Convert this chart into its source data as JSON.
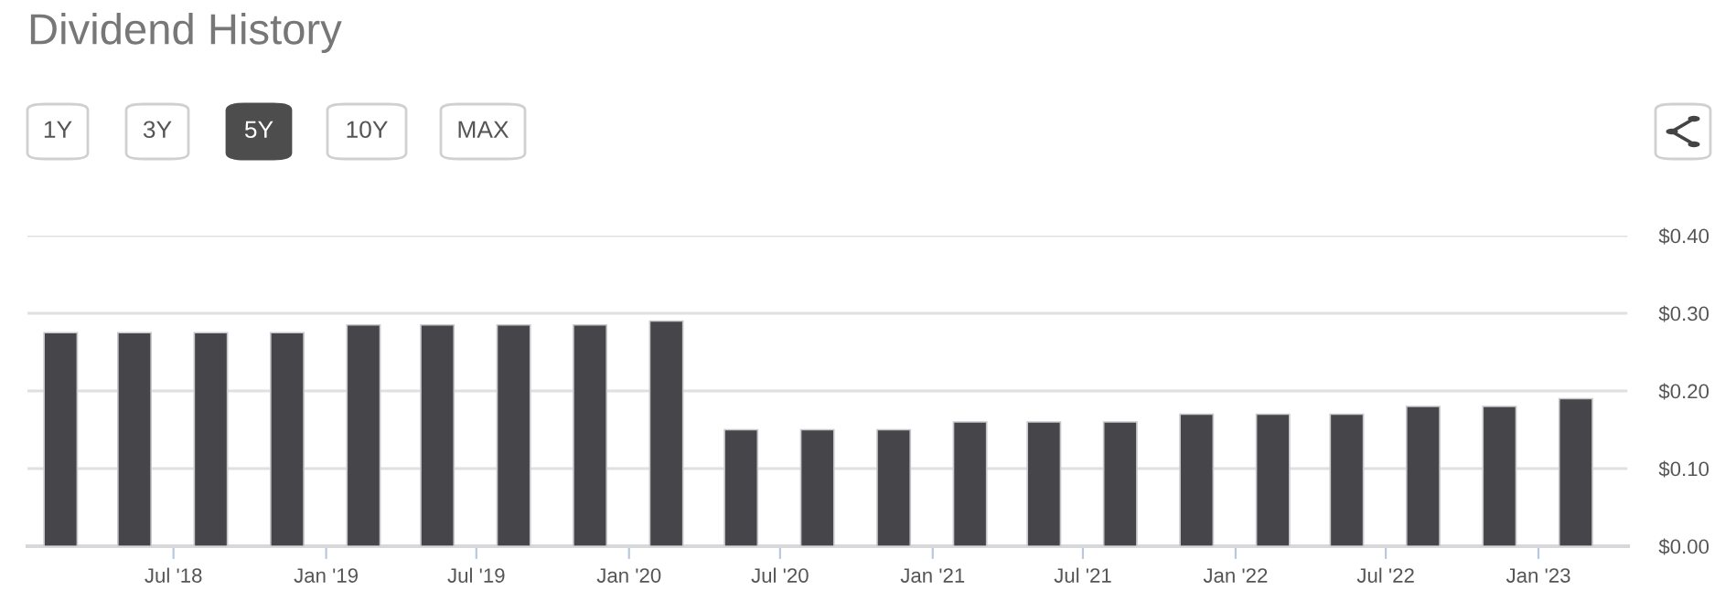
{
  "chart_data": {
    "type": "bar",
    "title": "Dividend History",
    "annotations": [
      "1Y",
      "3Y",
      "5Y",
      "10Y",
      "MAX"
    ],
    "x": [
      "2018-02-15",
      "2018-05-15",
      "2018-08-15",
      "2018-11-15",
      "2019-02-15",
      "2019-05-15",
      "2019-08-15",
      "2019-11-15",
      "2020-02-15",
      "2020-05-15",
      "2020-08-15",
      "2020-11-15",
      "2021-02-15",
      "2021-05-15",
      "2021-08-15",
      "2021-11-15",
      "2022-02-15",
      "2022-05-15",
      "2022-08-15",
      "2022-11-15",
      "2023-02-15"
    ],
    "values": [
      0.275,
      0.275,
      0.275,
      0.275,
      0.285,
      0.285,
      0.285,
      0.285,
      0.29,
      0.15,
      0.15,
      0.15,
      0.16,
      0.16,
      0.16,
      0.17,
      0.17,
      0.17,
      0.18,
      0.18,
      0.19
    ],
    "color": "#46454a",
    "xlim": [
      "2018-01-06",
      "2023-04-19"
    ],
    "xticks": [
      {
        "value": "2018-07-01",
        "label": "Jul '18"
      },
      {
        "value": "2019-01-01",
        "label": "Jan '19"
      },
      {
        "value": "2019-07-01",
        "label": "Jul '19"
      },
      {
        "value": "2020-01-01",
        "label": "Jan '20"
      },
      {
        "value": "2020-07-01",
        "label": "Jul '20"
      },
      {
        "value": "2021-01-01",
        "label": "Jan '21"
      },
      {
        "value": "2021-07-01",
        "label": "Jul '21"
      },
      {
        "value": "2022-01-01",
        "label": "Jan '22"
      },
      {
        "value": "2022-07-01",
        "label": "Jul '22"
      },
      {
        "value": "2023-01-01",
        "label": "Jan '23"
      }
    ],
    "ylim": [
      0,
      0.4
    ],
    "yticks": [
      {
        "value": 0,
        "label": "$0.00"
      },
      {
        "value": 0.1,
        "label": "$0.10"
      },
      {
        "value": 0.2,
        "label": "$0.20"
      },
      {
        "value": 0.3,
        "label": "$0.30"
      },
      {
        "value": 0.4,
        "label": "$0.40"
      }
    ],
    "grid": "y",
    "legend": false
  }
}
